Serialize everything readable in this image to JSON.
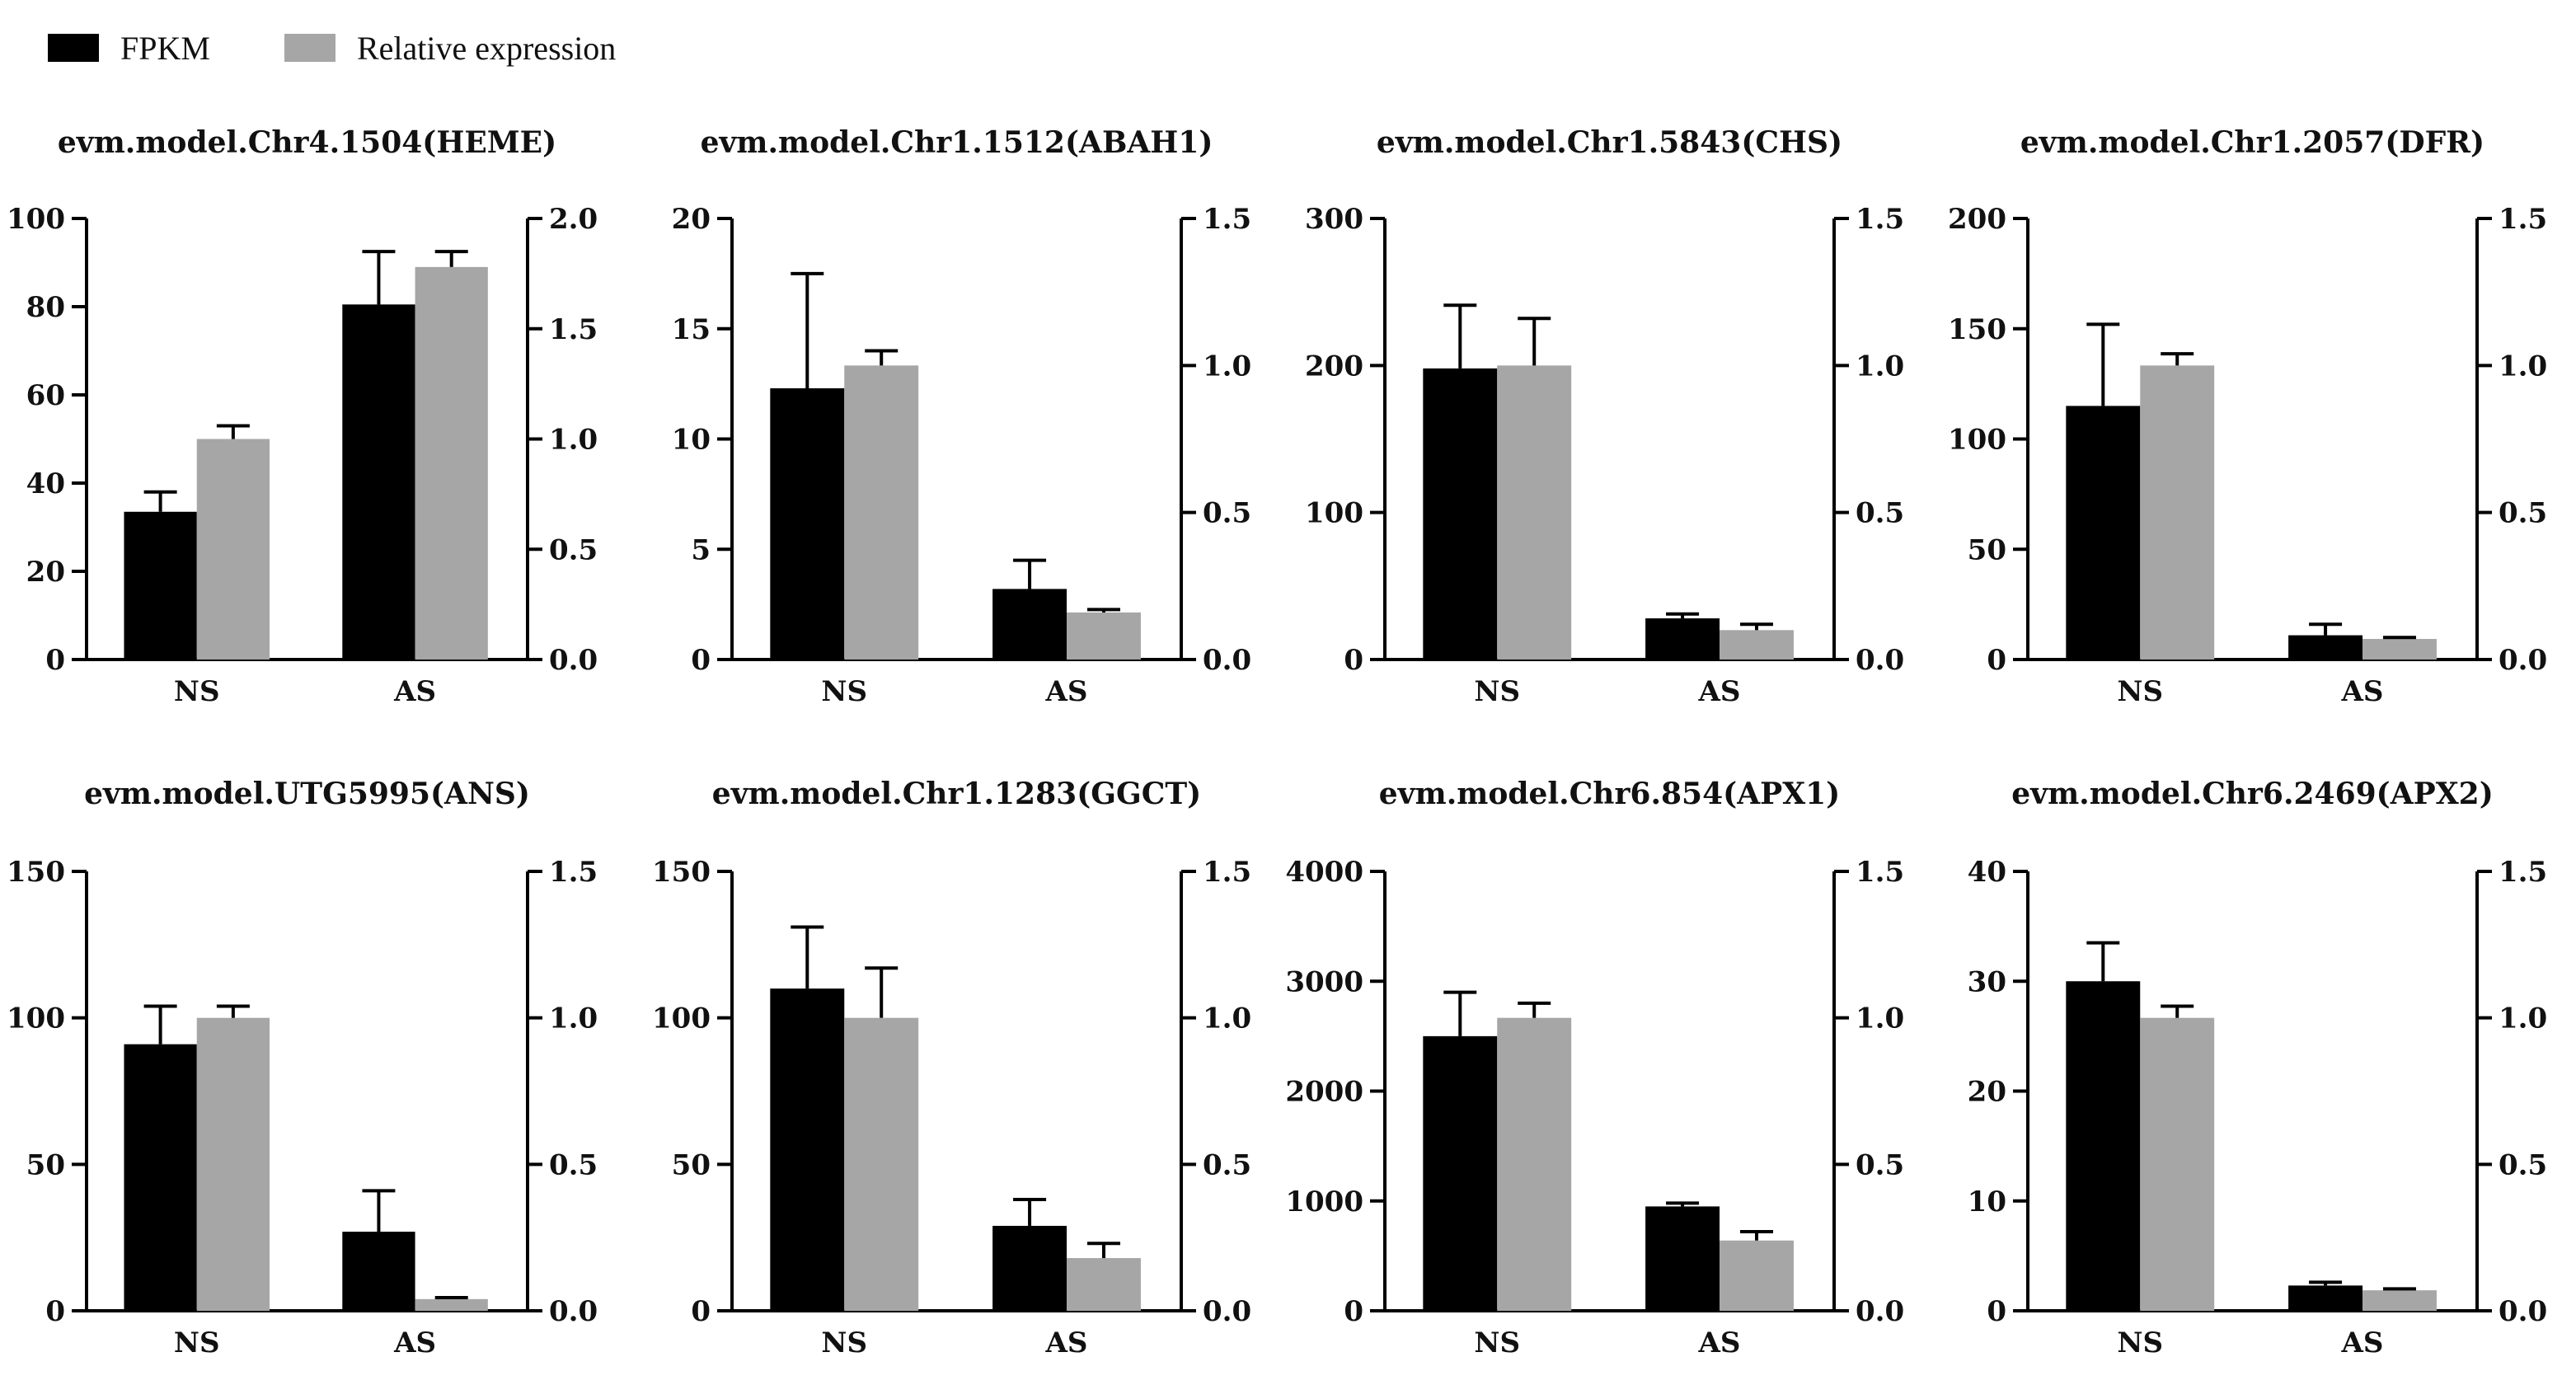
{
  "legend": {
    "fpkm_label": "FPKM",
    "rel_label": "Relative expression",
    "fpkm_color": "#000000",
    "rel_color": "#a6a6a6"
  },
  "chart_data": [
    {
      "type": "bar",
      "title": "evm.model.Chr4.1504(HEME)",
      "categories": [
        "NS",
        "AS"
      ],
      "left_axis": {
        "min": 0,
        "max": 100,
        "ticks": [
          0,
          20,
          40,
          60,
          80,
          100
        ]
      },
      "right_axis": {
        "min": 0,
        "max": 2.0,
        "ticks": [
          "0.0",
          "0.5",
          "1.0",
          "1.5",
          "2.0"
        ]
      },
      "series": [
        {
          "name": "FPKM",
          "axis": "left",
          "values": [
            33.5,
            80.5
          ],
          "errors": [
            4.5,
            12
          ]
        },
        {
          "name": "Relative expression",
          "axis": "right",
          "values": [
            1.0,
            1.78
          ],
          "errors": [
            0.06,
            0.07
          ]
        }
      ]
    },
    {
      "type": "bar",
      "title": "evm.model.Chr1.1512(ABAH1)",
      "categories": [
        "NS",
        "AS"
      ],
      "left_axis": {
        "min": 0,
        "max": 20,
        "ticks": [
          0,
          5,
          10,
          15,
          20
        ]
      },
      "right_axis": {
        "min": 0,
        "max": 1.5,
        "ticks": [
          "0.0",
          "0.5",
          "1.0",
          "1.5"
        ]
      },
      "series": [
        {
          "name": "FPKM",
          "axis": "left",
          "values": [
            12.3,
            3.2
          ],
          "errors": [
            5.2,
            1.3
          ]
        },
        {
          "name": "Relative expression",
          "axis": "right",
          "values": [
            1.0,
            0.16
          ],
          "errors": [
            0.05,
            0.01
          ]
        }
      ]
    },
    {
      "type": "bar",
      "title": "evm.model.Chr1.5843(CHS)",
      "categories": [
        "NS",
        "AS"
      ],
      "left_axis": {
        "min": 0,
        "max": 300,
        "ticks": [
          0,
          100,
          200,
          300
        ]
      },
      "right_axis": {
        "min": 0,
        "max": 1.5,
        "ticks": [
          "0.0",
          "0.5",
          "1.0",
          "1.5"
        ]
      },
      "series": [
        {
          "name": "FPKM",
          "axis": "left",
          "values": [
            198,
            28
          ],
          "errors": [
            43,
            3
          ]
        },
        {
          "name": "Relative expression",
          "axis": "right",
          "values": [
            1.0,
            0.1
          ],
          "errors": [
            0.16,
            0.02
          ]
        }
      ]
    },
    {
      "type": "bar",
      "title": "evm.model.Chr1.2057(DFR)",
      "categories": [
        "NS",
        "AS"
      ],
      "left_axis": {
        "min": 0,
        "max": 200,
        "ticks": [
          0,
          50,
          100,
          150,
          200
        ]
      },
      "right_axis": {
        "min": 0,
        "max": 1.5,
        "ticks": [
          "0.0",
          "0.5",
          "1.0",
          "1.5"
        ]
      },
      "series": [
        {
          "name": "FPKM",
          "axis": "left",
          "values": [
            115,
            11
          ],
          "errors": [
            37,
            5
          ]
        },
        {
          "name": "Relative expression",
          "axis": "right",
          "values": [
            1.0,
            0.07
          ],
          "errors": [
            0.04,
            0.005
          ]
        }
      ]
    },
    {
      "type": "bar",
      "title": "evm.model.UTG5995(ANS)",
      "categories": [
        "NS",
        "AS"
      ],
      "left_axis": {
        "min": 0,
        "max": 150,
        "ticks": [
          0,
          50,
          100,
          150
        ]
      },
      "right_axis": {
        "min": 0,
        "max": 1.5,
        "ticks": [
          "0.0",
          "0.5",
          "1.0",
          "1.5"
        ]
      },
      "series": [
        {
          "name": "FPKM",
          "axis": "left",
          "values": [
            91,
            27
          ],
          "errors": [
            13,
            14
          ]
        },
        {
          "name": "Relative expression",
          "axis": "right",
          "values": [
            1.0,
            0.04
          ],
          "errors": [
            0.04,
            0.005
          ]
        }
      ]
    },
    {
      "type": "bar",
      "title": "evm.model.Chr1.1283(GGCT)",
      "categories": [
        "NS",
        "AS"
      ],
      "left_axis": {
        "min": 0,
        "max": 150,
        "ticks": [
          0,
          50,
          100,
          150
        ]
      },
      "right_axis": {
        "min": 0,
        "max": 1.5,
        "ticks": [
          "0.0",
          "0.5",
          "1.0",
          "1.5"
        ]
      },
      "series": [
        {
          "name": "FPKM",
          "axis": "left",
          "values": [
            110,
            29
          ],
          "errors": [
            21,
            9
          ]
        },
        {
          "name": "Relative expression",
          "axis": "right",
          "values": [
            1.0,
            0.18
          ],
          "errors": [
            0.17,
            0.05
          ]
        }
      ]
    },
    {
      "type": "bar",
      "title": "evm.model.Chr6.854(APX1)",
      "categories": [
        "NS",
        "AS"
      ],
      "left_axis": {
        "min": 0,
        "max": 4000,
        "ticks": [
          0,
          1000,
          2000,
          3000,
          4000
        ]
      },
      "right_axis": {
        "min": 0,
        "max": 1.5,
        "ticks": [
          "0.0",
          "0.5",
          "1.0",
          "1.5"
        ]
      },
      "series": [
        {
          "name": "FPKM",
          "axis": "left",
          "values": [
            2500,
            950
          ],
          "errors": [
            400,
            30
          ]
        },
        {
          "name": "Relative expression",
          "axis": "right",
          "values": [
            1.0,
            0.24
          ],
          "errors": [
            0.05,
            0.03
          ]
        }
      ]
    },
    {
      "type": "bar",
      "title": "evm.model.Chr6.2469(APX2)",
      "categories": [
        "NS",
        "AS"
      ],
      "left_axis": {
        "min": 0,
        "max": 40,
        "ticks": [
          0,
          10,
          20,
          30,
          40
        ]
      },
      "right_axis": {
        "min": 0,
        "max": 1.5,
        "ticks": [
          "0.0",
          "0.5",
          "1.0",
          "1.5"
        ]
      },
      "series": [
        {
          "name": "FPKM",
          "axis": "left",
          "values": [
            30,
            2.3
          ],
          "errors": [
            3.5,
            0.3
          ]
        },
        {
          "name": "Relative expression",
          "axis": "right",
          "values": [
            1.0,
            0.07
          ],
          "errors": [
            0.04,
            0.005
          ]
        }
      ]
    }
  ]
}
